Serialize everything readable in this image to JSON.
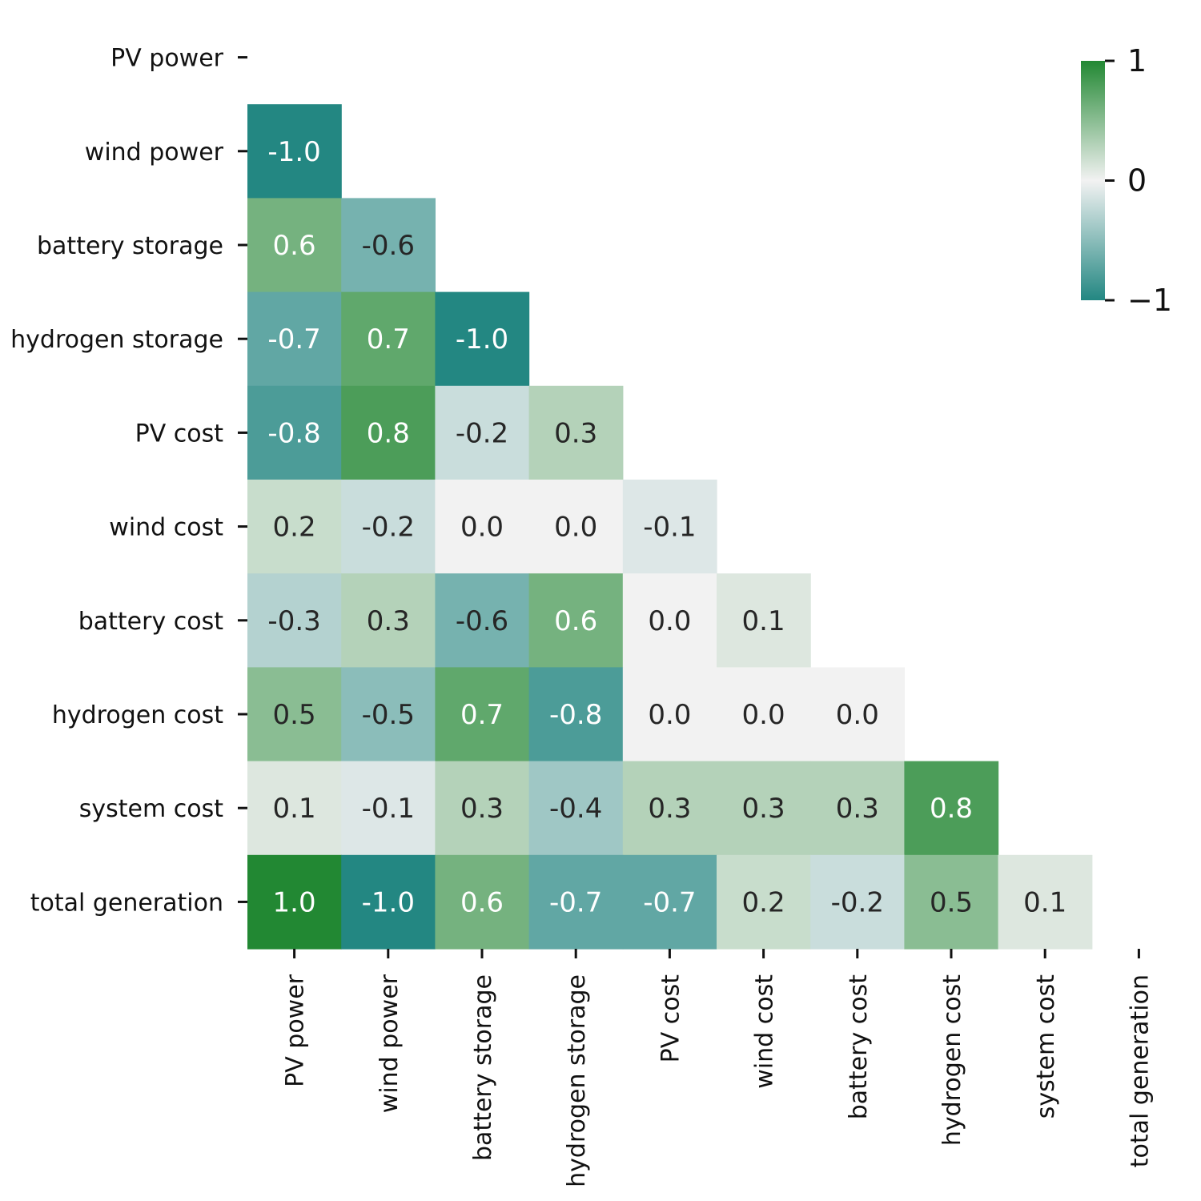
{
  "chart_data": {
    "type": "heatmap",
    "title": "",
    "xlabel": "",
    "ylabel": "",
    "variables": [
      "PV power",
      "wind power",
      "battery storage",
      "hydrogen storage",
      "PV cost",
      "wind cost",
      "battery cost",
      "hydrogen cost",
      "system cost",
      "total generation"
    ],
    "mask": "upper-triangle-including-diagonal",
    "value_format": "one decimal",
    "matrix": [
      [
        null,
        null,
        null,
        null,
        null,
        null,
        null,
        null,
        null,
        null
      ],
      [
        -1.0,
        null,
        null,
        null,
        null,
        null,
        null,
        null,
        null,
        null
      ],
      [
        0.6,
        -0.6,
        null,
        null,
        null,
        null,
        null,
        null,
        null,
        null
      ],
      [
        -0.7,
        0.7,
        -1.0,
        null,
        null,
        null,
        null,
        null,
        null,
        null
      ],
      [
        -0.8,
        0.8,
        -0.2,
        0.3,
        null,
        null,
        null,
        null,
        null,
        null
      ],
      [
        0.2,
        -0.2,
        -0.0,
        0.0,
        -0.1,
        null,
        null,
        null,
        null,
        null
      ],
      [
        -0.3,
        0.3,
        -0.6,
        0.6,
        0.0,
        0.1,
        null,
        null,
        null,
        null
      ],
      [
        0.5,
        -0.5,
        0.7,
        -0.8,
        0.0,
        -0.0,
        -0.0,
        null,
        null,
        null
      ],
      [
        0.1,
        -0.1,
        0.3,
        -0.4,
        0.3,
        0.3,
        0.3,
        0.8,
        null,
        null
      ],
      [
        1.0,
        -1.0,
        0.6,
        -0.7,
        -0.7,
        0.2,
        -0.2,
        0.5,
        0.1,
        null
      ]
    ],
    "colorbar": {
      "min": -1,
      "max": 1,
      "ticks": [
        {
          "value": 1,
          "label": "1"
        },
        {
          "value": 0,
          "label": "0"
        },
        {
          "value": -1,
          "label": "−1"
        }
      ],
      "colors": {
        "negative": "#238782",
        "neutral": "#f2f2f2",
        "positive": "#228833"
      }
    },
    "text_colors": {
      "light": "#ffffff",
      "dark": "#262626"
    }
  }
}
